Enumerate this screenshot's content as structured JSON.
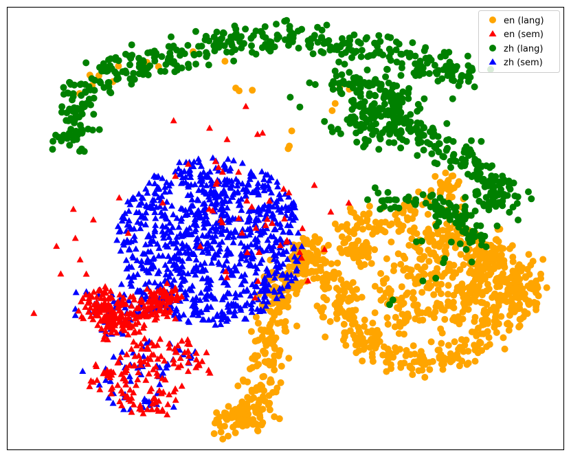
{
  "chart_data": {
    "type": "scatter",
    "title": "",
    "xlabel": "",
    "ylabel": "",
    "xlim": [
      0,
      100
    ],
    "ylim": [
      0,
      100
    ],
    "grid": false,
    "axis_ticks": false,
    "legend_placement": "top-right",
    "series": [
      {
        "name": "en (lang)",
        "marker": "circle",
        "color": "#FFA500",
        "clusters": [
          {
            "points": [
              [
                79,
                60
              ],
              [
                73,
                55
              ],
              [
                66,
                52
              ],
              [
                61,
                50
              ],
              [
                63,
                45
              ],
              [
                64,
                44
              ],
              [
                79,
                60
              ],
              [
                85,
                43
              ],
              [
                87,
                43
              ]
            ],
            "spread": 1.5,
            "per_point": 22
          },
          {
            "points": [
              [
                72,
                40
              ],
              [
                78,
                40
              ],
              [
                83,
                37
              ],
              [
                88,
                34
              ],
              [
                93,
                35
              ],
              [
                91,
                38
              ],
              [
                88,
                44
              ],
              [
                84,
                45
              ],
              [
                80,
                48
              ],
              [
                75,
                48
              ]
            ],
            "spread": 2.6,
            "per_point": 35
          },
          {
            "points": [
              [
                93,
                35
              ],
              [
                88,
                27
              ],
              [
                83,
                22
              ],
              [
                78,
                21
              ],
              [
                73,
                20
              ],
              [
                68,
                22
              ],
              [
                64,
                25
              ],
              [
                61,
                28
              ],
              [
                59,
                32
              ],
              [
                60,
                36
              ],
              [
                57,
                40
              ],
              [
                54,
                45
              ]
            ],
            "spread": 1.8,
            "per_point": 25
          },
          {
            "points": [
              [
                54,
                45
              ],
              [
                52,
                42
              ],
              [
                50,
                38
              ],
              [
                49,
                35
              ],
              [
                48,
                30
              ],
              [
                47,
                25
              ],
              [
                47,
                20
              ],
              [
                46,
                15
              ],
              [
                45,
                11
              ],
              [
                44,
                8
              ],
              [
                42,
                7
              ],
              [
                40,
                6
              ]
            ],
            "spread": 1.7,
            "per_point": 24
          },
          {
            "points": [
              [
                68,
                36
              ],
              [
                72,
                33
              ],
              [
                77,
                31
              ],
              [
                82,
                33
              ],
              [
                86,
                30
              ],
              [
                70,
                30
              ]
            ],
            "spread": 2.2,
            "per_point": 18
          },
          {
            "points": [
              [
                50,
                68
              ],
              [
                56,
                75
              ],
              [
                62,
                80
              ],
              [
                40,
                85
              ],
              [
                30,
                88
              ],
              [
                20,
                86
              ],
              [
                14,
                82
              ]
            ],
            "spread": 1.6,
            "per_point": 3
          }
        ]
      },
      {
        "name": "en (sem)",
        "marker": "triangle",
        "color": "#FF0000",
        "clusters": [
          {
            "points": [
              [
                15,
                34
              ],
              [
                18,
                34
              ],
              [
                16,
                31
              ],
              [
                20,
                33
              ],
              [
                25,
                33
              ],
              [
                28,
                34
              ],
              [
                30,
                35
              ],
              [
                27,
                32
              ],
              [
                23,
                30
              ],
              [
                20,
                29
              ],
              [
                18,
                28
              ]
            ],
            "spread": 1.3,
            "per_point": 22
          },
          {
            "points": [
              [
                22,
                28
              ],
              [
                24,
                22
              ],
              [
                26,
                18
              ],
              [
                28,
                12
              ],
              [
                25,
                10
              ],
              [
                20,
                12
              ],
              [
                18,
                17
              ],
              [
                21,
                18
              ],
              [
                30,
                22
              ],
              [
                33,
                21
              ]
            ],
            "spread": 1.6,
            "per_point": 16
          },
          {
            "points": [
              [
                12,
                40
              ],
              [
                20,
                50
              ],
              [
                35,
                55
              ],
              [
                45,
                60
              ],
              [
                50,
                44
              ],
              [
                40,
                48
              ],
              [
                30,
                66
              ],
              [
                44,
                72
              ],
              [
                48,
                56
              ],
              [
                54,
                50
              ]
            ],
            "spread": 5.5,
            "per_point": 6
          }
        ]
      },
      {
        "name": "zh (lang)",
        "marker": "circle",
        "color": "#008000",
        "clusters": [
          {
            "points": [
              [
                11,
                70
              ],
              [
                12,
                74
              ],
              [
                13,
                78
              ],
              [
                14,
                82
              ],
              [
                18,
                85
              ],
              [
                22,
                86
              ],
              [
                26,
                88
              ],
              [
                30,
                89
              ],
              [
                35,
                91
              ],
              [
                40,
                92
              ],
              [
                45,
                93
              ],
              [
                50,
                93
              ],
              [
                55,
                93
              ],
              [
                60,
                91
              ],
              [
                65,
                90
              ],
              [
                70,
                89
              ],
              [
                74,
                88
              ],
              [
                78,
                86
              ],
              [
                81,
                85
              ]
            ],
            "spread": 1.8,
            "per_point": 22
          },
          {
            "points": [
              [
                60,
                83
              ],
              [
                63,
                82
              ],
              [
                66,
                82
              ],
              [
                69,
                80
              ],
              [
                71,
                78
              ],
              [
                68,
                76
              ],
              [
                64,
                77
              ],
              [
                62,
                74
              ],
              [
                66,
                71
              ],
              [
                70,
                73
              ],
              [
                73,
                72
              ],
              [
                76,
                70
              ],
              [
                79,
                68
              ],
              [
                82,
                66
              ],
              [
                85,
                63
              ],
              [
                88,
                60
              ],
              [
                90,
                58
              ],
              [
                86,
                57
              ]
            ],
            "spread": 1.7,
            "per_point": 20
          },
          {
            "points": [
              [
                66,
                57
              ],
              [
                70,
                56
              ],
              [
                74,
                56
              ],
              [
                78,
                55
              ],
              [
                80,
                53
              ],
              [
                82,
                54
              ],
              [
                78,
                52
              ],
              [
                82,
                50
              ],
              [
                84,
                48
              ]
            ],
            "spread": 1.3,
            "per_point": 10
          },
          {
            "points": [
              [
                75,
                47
              ],
              [
                78,
                44
              ],
              [
                69,
                33
              ],
              [
                70,
                31
              ],
              [
                79,
                42
              ],
              [
                86,
                49
              ],
              [
                92,
                54
              ],
              [
                56,
                85
              ],
              [
                52,
                80
              ]
            ],
            "spread": 1.0,
            "per_point": 2
          }
        ]
      },
      {
        "name": "zh (sem)",
        "marker": "triangle",
        "color": "#0000FF",
        "region": {
          "center": [
            36.5,
            47
          ],
          "radii": [
            34,
            38
          ],
          "count": 900
        },
        "clusters": [
          {
            "points": [
              [
                15,
                34
              ],
              [
                18,
                34
              ],
              [
                16,
                31
              ],
              [
                20,
                33
              ],
              [
                25,
                33
              ],
              [
                28,
                34
              ],
              [
                30,
                35
              ],
              [
                27,
                32
              ],
              [
                23,
                30
              ],
              [
                20,
                29
              ],
              [
                18,
                28
              ]
            ],
            "spread": 1.8,
            "per_point": 6
          },
          {
            "points": [
              [
                22,
                28
              ],
              [
                24,
                22
              ],
              [
                26,
                18
              ],
              [
                28,
                12
              ],
              [
                25,
                10
              ],
              [
                20,
                12
              ],
              [
                18,
                17
              ],
              [
                21,
                18
              ],
              [
                30,
                22
              ],
              [
                33,
                21
              ]
            ],
            "spread": 2.0,
            "per_point": 6
          }
        ]
      }
    ]
  }
}
